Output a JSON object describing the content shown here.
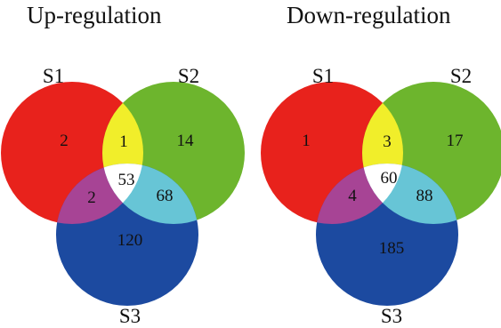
{
  "panels": [
    {
      "title": "Up-regulation",
      "labels": {
        "s1": "S1",
        "s2": "S2",
        "s3": "S3"
      },
      "counts": {
        "s1_only": "2",
        "s1_s2": "1",
        "s2_only": "14",
        "all": "53",
        "s1_s3": "2",
        "s2_s3": "68",
        "s3_only": "120"
      }
    },
    {
      "title": "Down-regulation",
      "labels": {
        "s1": "S1",
        "s2": "S2",
        "s3": "S3"
      },
      "counts": {
        "s1_only": "1",
        "s1_s2": "3",
        "s2_only": "17",
        "all": "60",
        "s1_s3": "4",
        "s2_s3": "88",
        "s3_only": "185"
      }
    }
  ],
  "colors": {
    "s1": "#e8221c",
    "s2": "#6db52d",
    "s3": "#1c4aa0",
    "s1_s2": "#f1ee2a",
    "s1_s3": "#a74495",
    "s2_s3": "#67c5d6",
    "all": "#ffffff"
  }
}
